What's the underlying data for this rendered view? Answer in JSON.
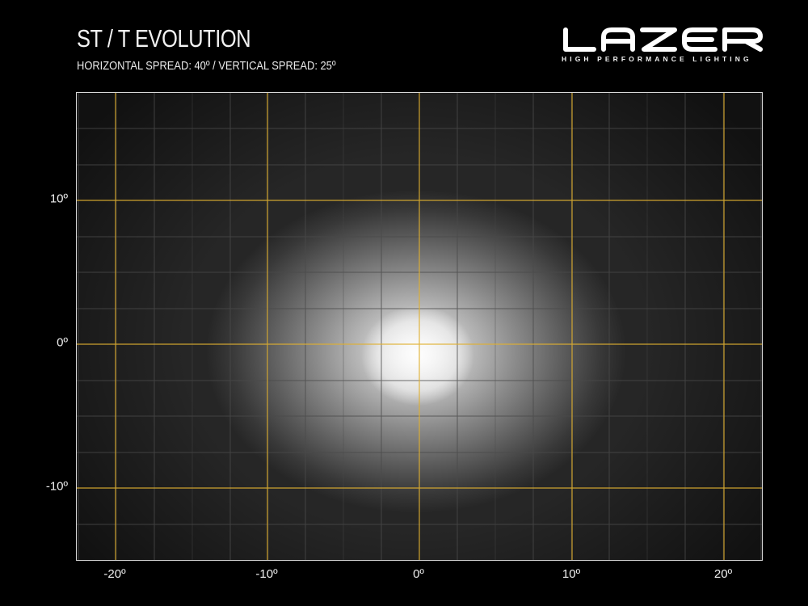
{
  "header": {
    "title": "ST / T EVOLUTION",
    "subtitle": "HORIZONTAL SPREAD: 40º  /  VERTICAL SPREAD:  25º"
  },
  "brand": {
    "wordmark": "LAZER",
    "tagline": "HIGH PERFORMANCE LIGHTING"
  },
  "colors": {
    "background": "#000000",
    "gridline_major": "#e0b030",
    "gridline_minor": "#555555",
    "frame": "#d8d8d8"
  },
  "axes": {
    "x_ticks": [
      "-20º",
      "-10º",
      "0º",
      "10º",
      "20º"
    ],
    "y_ticks": [
      "10º",
      "0º",
      "-10º"
    ]
  }
}
